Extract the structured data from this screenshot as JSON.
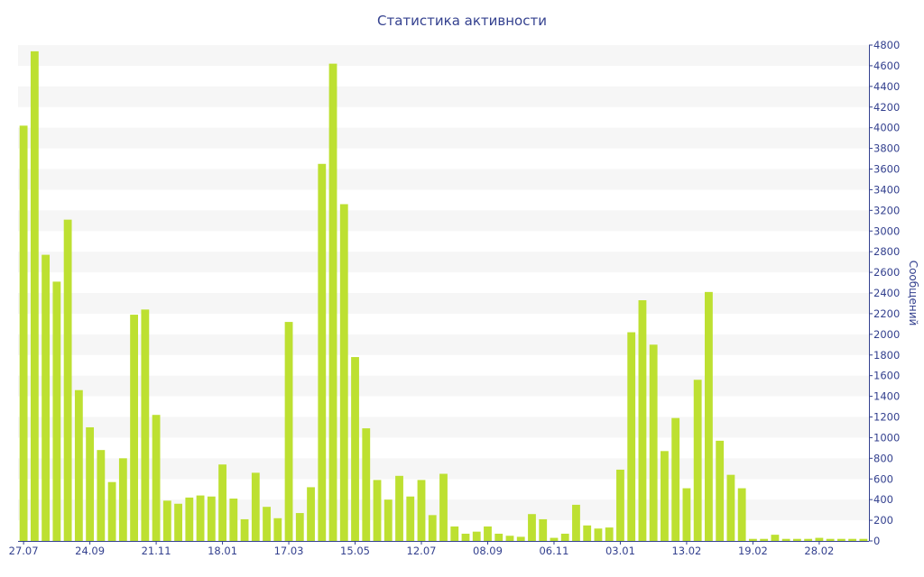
{
  "chart_data": {
    "type": "bar",
    "title": "Статистика активности",
    "ylabel": "Сообщений",
    "xlabel": "",
    "ylim": [
      0,
      4800
    ],
    "y_ticks": [
      0,
      200,
      400,
      600,
      800,
      1000,
      1200,
      1400,
      1600,
      1800,
      2000,
      2200,
      2400,
      2600,
      2800,
      3000,
      3200,
      3400,
      3600,
      3800,
      4000,
      4200,
      4400,
      4600,
      4800
    ],
    "x_tick_labels": [
      {
        "index": 0,
        "label": "27.07"
      },
      {
        "index": 6,
        "label": "24.09"
      },
      {
        "index": 12,
        "label": "21.11"
      },
      {
        "index": 18,
        "label": "18.01"
      },
      {
        "index": 24,
        "label": "17.03"
      },
      {
        "index": 30,
        "label": "15.05"
      },
      {
        "index": 36,
        "label": "12.07"
      },
      {
        "index": 42,
        "label": "08.09"
      },
      {
        "index": 48,
        "label": "06.11"
      },
      {
        "index": 54,
        "label": "03.01"
      },
      {
        "index": 60,
        "label": "13.02"
      },
      {
        "index": 66,
        "label": "19.02"
      },
      {
        "index": 72,
        "label": "28.02"
      }
    ],
    "values": [
      4020,
      4740,
      2770,
      2510,
      3110,
      1460,
      1100,
      880,
      570,
      800,
      2190,
      2240,
      1220,
      390,
      360,
      420,
      440,
      430,
      740,
      410,
      210,
      660,
      330,
      220,
      2120,
      270,
      520,
      3650,
      4620,
      3260,
      1780,
      1090,
      590,
      400,
      630,
      430,
      590,
      250,
      650,
      140,
      70,
      90,
      140,
      70,
      50,
      40,
      260,
      210,
      30,
      70,
      350,
      150,
      120,
      130,
      690,
      2020,
      2330,
      1900,
      870,
      1190,
      510,
      1560,
      2410,
      970,
      640,
      510,
      20,
      20,
      60,
      20,
      20,
      20,
      30,
      20,
      20,
      20,
      20
    ],
    "grid": true,
    "grid_style": "alternating horizontal bands",
    "y_axis_position": "right",
    "colors": {
      "bar": "#bde031",
      "band": "#f6f6f6",
      "text": "#34418f",
      "axis": "#34418f"
    }
  }
}
